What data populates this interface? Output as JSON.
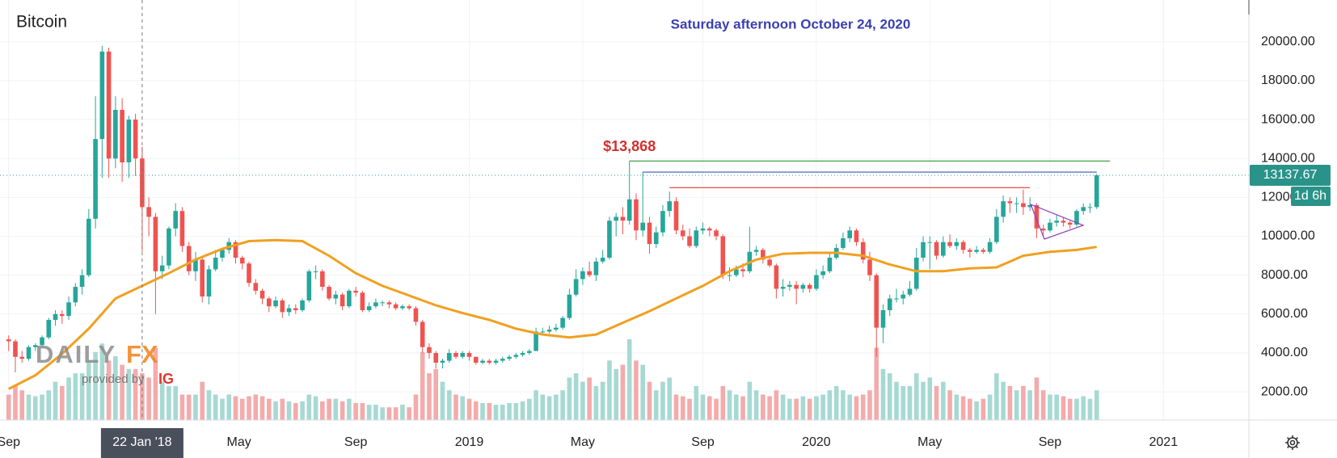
{
  "chart_data": {
    "type": "candlestick",
    "symbol": "Bitcoin",
    "title": "Saturday afternoon October 24, 2020",
    "up_color": "#26a69a",
    "down_color": "#ef5350",
    "up_volume_color": "#a7d9d3",
    "down_volume_color": "#f3abab",
    "grid": true,
    "xlim": [
      -1.3,
      185.8
    ],
    "xticks": [
      {
        "value": 0,
        "label": "Sep"
      },
      {
        "value": 34.5,
        "label": "May"
      },
      {
        "value": 52,
        "label": "Sep"
      },
      {
        "value": 69,
        "label": "2019"
      },
      {
        "value": 86,
        "label": "May"
      },
      {
        "value": 104,
        "label": "Sep"
      },
      {
        "value": 121,
        "label": "2020"
      },
      {
        "value": 138,
        "label": "May"
      },
      {
        "value": 156,
        "label": "Sep"
      },
      {
        "value": 173,
        "label": "2021"
      }
    ],
    "ylim": [
      550,
      22150
    ],
    "yticks": [
      {
        "value": 2000,
        "label": "2000.00"
      },
      {
        "value": 4000,
        "label": "4000.00"
      },
      {
        "value": 6000,
        "label": "6000.00"
      },
      {
        "value": 8000,
        "label": "8000.00"
      },
      {
        "value": 10000,
        "label": "10000.00"
      },
      {
        "value": 12000,
        "label": "12000.00"
      },
      {
        "value": 14000,
        "label": "14000.00"
      },
      {
        "value": 16000,
        "label": "16000.00"
      },
      {
        "value": 18000,
        "label": "18000.00"
      },
      {
        "value": 20000,
        "label": "20000.00"
      }
    ],
    "candles": [
      [
        4700,
        4900,
        4100,
        4600
      ],
      [
        4600,
        4700,
        3000,
        3800
      ],
      [
        3800,
        4100,
        3500,
        3700
      ],
      [
        3700,
        4400,
        3600,
        4300
      ],
      [
        4300,
        4500,
        4100,
        4400
      ],
      [
        4400,
        4900,
        4300,
        4800
      ],
      [
        4800,
        5800,
        4700,
        5700
      ],
      [
        5700,
        6200,
        5400,
        6000
      ],
      [
        6000,
        6200,
        5500,
        5900
      ],
      [
        5900,
        6900,
        5700,
        6600
      ],
      [
        6600,
        7600,
        6400,
        7400
      ],
      [
        7400,
        8300,
        7000,
        8000
      ],
      [
        8000,
        11400,
        7900,
        10900
      ],
      [
        10900,
        17200,
        10400,
        15000
      ],
      [
        15000,
        19800,
        13000,
        19500
      ],
      [
        19500,
        19700,
        13000,
        14000
      ],
      [
        14000,
        17200,
        13500,
        16500
      ],
      [
        16500,
        17100,
        12800,
        13800
      ],
      [
        13800,
        16200,
        13000,
        16000
      ],
      [
        16000,
        16300,
        13100,
        14000
      ],
      [
        14000,
        14600,
        9200,
        11500
      ],
      [
        11500,
        12000,
        10000,
        11000
      ],
      [
        11000,
        11200,
        6000,
        8200
      ],
      [
        8200,
        9000,
        7800,
        8500
      ],
      [
        8500,
        10500,
        8300,
        10400
      ],
      [
        10400,
        11700,
        10000,
        11300
      ],
      [
        11300,
        11500,
        9200,
        9500
      ],
      [
        9500,
        9700,
        8000,
        8200
      ],
      [
        8200,
        9200,
        7700,
        8800
      ],
      [
        8800,
        9000,
        6600,
        6900
      ],
      [
        6900,
        8500,
        6500,
        8300
      ],
      [
        8300,
        9300,
        8200,
        8900
      ],
      [
        8900,
        9400,
        8700,
        9300
      ],
      [
        9300,
        9900,
        9100,
        9700
      ],
      [
        9700,
        9800,
        8600,
        8900
      ],
      [
        8900,
        9000,
        8300,
        8600
      ],
      [
        8600,
        8700,
        7400,
        7600
      ],
      [
        7600,
        7800,
        7000,
        7200
      ],
      [
        7200,
        7300,
        6500,
        6800
      ],
      [
        6800,
        6900,
        6100,
        6400
      ],
      [
        6400,
        6900,
        6300,
        6700
      ],
      [
        6700,
        6800,
        5800,
        6100
      ],
      [
        6100,
        6500,
        5900,
        6300
      ],
      [
        6300,
        6500,
        6000,
        6200
      ],
      [
        6200,
        6800,
        6100,
        6700
      ],
      [
        6700,
        8300,
        6600,
        8200
      ],
      [
        8200,
        8500,
        7800,
        8200
      ],
      [
        8200,
        8300,
        7200,
        7400
      ],
      [
        7400,
        7500,
        6700,
        6800
      ],
      [
        6800,
        7200,
        6500,
        7000
      ],
      [
        7000,
        7100,
        6200,
        6400
      ],
      [
        6400,
        7300,
        6300,
        7200
      ],
      [
        7200,
        7400,
        6900,
        7100
      ],
      [
        7100,
        7200,
        6100,
        6200
      ],
      [
        6200,
        6600,
        6100,
        6400
      ],
      [
        6400,
        6800,
        6300,
        6600
      ],
      [
        6600,
        6700,
        6400,
        6600
      ],
      [
        6600,
        6700,
        6300,
        6500
      ],
      [
        6500,
        6600,
        6200,
        6300
      ],
      [
        6300,
        6500,
        6200,
        6400
      ],
      [
        6400,
        6500,
        6200,
        6300
      ],
      [
        6300,
        6400,
        5400,
        5600
      ],
      [
        5600,
        5700,
        4000,
        4300
      ],
      [
        4300,
        4500,
        3700,
        4000
      ],
      [
        4000,
        4100,
        3200,
        3500
      ],
      [
        3500,
        3700,
        3200,
        3600
      ],
      [
        3600,
        4200,
        3500,
        4000
      ],
      [
        4000,
        4100,
        3700,
        3800
      ],
      [
        3800,
        4100,
        3700,
        4000
      ],
      [
        4000,
        4100,
        3600,
        3800
      ],
      [
        3800,
        3800,
        3400,
        3500
      ],
      [
        3500,
        3700,
        3400,
        3600
      ],
      [
        3600,
        3700,
        3400,
        3500
      ],
      [
        3500,
        3700,
        3400,
        3600
      ],
      [
        3600,
        3800,
        3500,
        3700
      ],
      [
        3700,
        3900,
        3600,
        3800
      ],
      [
        3800,
        4000,
        3700,
        3900
      ],
      [
        3900,
        4100,
        3800,
        4000
      ],
      [
        4000,
        4200,
        3900,
        4100
      ],
      [
        4100,
        5300,
        4100,
        5100
      ],
      [
        5100,
        5300,
        4900,
        5100
      ],
      [
        5100,
        5400,
        5000,
        5200
      ],
      [
        5200,
        5500,
        5100,
        5300
      ],
      [
        5300,
        5900,
        5200,
        5800
      ],
      [
        5800,
        7300,
        5700,
        7000
      ],
      [
        7000,
        8300,
        6900,
        7800
      ],
      [
        7800,
        8400,
        7500,
        8200
      ],
      [
        8200,
        8700,
        7900,
        8000
      ],
      [
        8000,
        8900,
        7700,
        8700
      ],
      [
        8700,
        9300,
        8600,
        8900
      ],
      [
        8900,
        11000,
        8800,
        10800
      ],
      [
        10800,
        11200,
        10000,
        11000
      ],
      [
        11000,
        11500,
        10100,
        10800
      ],
      [
        10800,
        13868,
        10600,
        11900
      ],
      [
        11900,
        12200,
        9800,
        10300
      ],
      [
        10300,
        13300,
        10000,
        10700
      ],
      [
        10700,
        11000,
        9100,
        9600
      ],
      [
        9600,
        10500,
        9400,
        10200
      ],
      [
        10200,
        11600,
        10000,
        11300
      ],
      [
        11300,
        12300,
        11000,
        11800
      ],
      [
        11800,
        12000,
        10100,
        10300
      ],
      [
        10300,
        10600,
        9800,
        10000
      ],
      [
        10000,
        10400,
        9400,
        9500
      ],
      [
        9500,
        10500,
        9400,
        10300
      ],
      [
        10300,
        10700,
        10100,
        10400
      ],
      [
        10400,
        10500,
        10000,
        10300
      ],
      [
        10300,
        10400,
        9800,
        10000
      ],
      [
        10000,
        10100,
        7800,
        8000
      ],
      [
        8000,
        8400,
        7700,
        8000
      ],
      [
        8000,
        8500,
        7900,
        8300
      ],
      [
        8300,
        8600,
        7900,
        8200
      ],
      [
        8200,
        10500,
        8100,
        9200
      ],
      [
        9200,
        9500,
        9000,
        9300
      ],
      [
        9300,
        9400,
        8600,
        8800
      ],
      [
        8800,
        9000,
        8400,
        8500
      ],
      [
        8500,
        8600,
        6800,
        7300
      ],
      [
        7300,
        7800,
        6900,
        7400
      ],
      [
        7400,
        7700,
        7200,
        7500
      ],
      [
        7500,
        7700,
        6500,
        7300
      ],
      [
        7300,
        7600,
        7100,
        7500
      ],
      [
        7500,
        7600,
        7100,
        7300
      ],
      [
        7300,
        8300,
        7200,
        8000
      ],
      [
        8000,
        8500,
        7800,
        8200
      ],
      [
        8200,
        9100,
        8100,
        8900
      ],
      [
        8900,
        9600,
        8800,
        9400
      ],
      [
        9400,
        10200,
        9300,
        9900
      ],
      [
        9900,
        10500,
        9700,
        10300
      ],
      [
        10300,
        10400,
        9500,
        9700
      ],
      [
        9700,
        9900,
        8600,
        8800
      ],
      [
        8800,
        9200,
        7700,
        8000
      ],
      [
        8000,
        8100,
        3800,
        5300
      ],
      [
        5300,
        6500,
        4500,
        6200
      ],
      [
        6200,
        7000,
        5900,
        6800
      ],
      [
        6800,
        7300,
        6600,
        6800
      ],
      [
        6800,
        7200,
        6500,
        7000
      ],
      [
        7000,
        7700,
        6900,
        7300
      ],
      [
        7300,
        9400,
        7200,
        8900
      ],
      [
        8900,
        10000,
        8700,
        9700
      ],
      [
        9700,
        10000,
        8300,
        9700
      ],
      [
        9700,
        9800,
        8800,
        9000
      ],
      [
        9000,
        10000,
        8900,
        9700
      ],
      [
        9700,
        10100,
        9400,
        9500
      ],
      [
        9500,
        9900,
        9300,
        9700
      ],
      [
        9700,
        9800,
        9100,
        9300
      ],
      [
        9300,
        9400,
        8900,
        9200
      ],
      [
        9200,
        9500,
        9100,
        9300
      ],
      [
        9300,
        9400,
        9100,
        9200
      ],
      [
        9200,
        9900,
        9100,
        9700
      ],
      [
        9700,
        11400,
        9600,
        11000
      ],
      [
        11000,
        12100,
        10700,
        11800
      ],
      [
        11800,
        12000,
        11200,
        11700
      ],
      [
        11700,
        12000,
        11200,
        11700
      ],
      [
        11700,
        12400,
        11100,
        11500
      ],
      [
        11500,
        12000,
        11300,
        11600
      ],
      [
        11600,
        11700,
        9900,
        10400
      ],
      [
        10400,
        10600,
        10000,
        10300
      ],
      [
        10300,
        10900,
        10200,
        10700
      ],
      [
        10700,
        11100,
        10500,
        10800
      ],
      [
        10800,
        11000,
        10500,
        10700
      ],
      [
        10700,
        10800,
        10400,
        10600
      ],
      [
        10600,
        11400,
        10500,
        11300
      ],
      [
        11300,
        11700,
        11100,
        11500
      ],
      [
        11500,
        11700,
        11200,
        11500
      ],
      [
        11500,
        13200,
        11400,
        13137.67
      ]
    ],
    "volume": [
      30,
      40,
      35,
      30,
      28,
      30,
      35,
      45,
      40,
      50,
      55,
      55,
      70,
      80,
      90,
      70,
      75,
      65,
      60,
      60,
      55,
      50,
      85,
      45,
      40,
      40,
      30,
      30,
      30,
      45,
      35,
      30,
      25,
      30,
      28,
      25,
      28,
      30,
      28,
      25,
      22,
      25,
      22,
      20,
      22,
      30,
      28,
      22,
      25,
      25,
      22,
      25,
      20,
      20,
      18,
      18,
      15,
      15,
      15,
      18,
      15,
      30,
      80,
      55,
      60,
      45,
      35,
      30,
      28,
      25,
      22,
      20,
      20,
      18,
      18,
      20,
      20,
      22,
      25,
      35,
      30,
      28,
      30,
      35,
      50,
      55,
      45,
      50,
      40,
      45,
      70,
      60,
      65,
      95,
      70,
      65,
      45,
      35,
      45,
      50,
      30,
      28,
      25,
      40,
      30,
      28,
      25,
      40,
      35,
      30,
      28,
      45,
      35,
      30,
      28,
      35,
      30,
      25,
      25,
      28,
      25,
      28,
      30,
      35,
      40,
      35,
      30,
      28,
      30,
      35,
      85,
      60,
      55,
      45,
      40,
      40,
      55,
      45,
      50,
      40,
      45,
      35,
      30,
      28,
      25,
      22,
      25,
      30,
      55,
      45,
      40,
      35,
      40,
      35,
      50,
      35,
      30,
      30,
      28,
      25,
      25,
      28,
      25,
      35
    ],
    "ma": {
      "color": "#f0a020",
      "x": [
        0,
        4,
        8,
        12,
        16,
        20,
        24,
        28,
        32,
        36,
        40,
        44,
        48,
        52,
        56,
        60,
        64,
        68,
        72,
        76,
        80,
        84,
        88,
        92,
        96,
        100,
        104,
        108,
        112,
        116,
        120,
        124,
        128,
        132,
        136,
        140,
        144,
        148,
        152,
        156,
        160,
        163
      ],
      "values": [
        2150,
        2850,
        3950,
        5250,
        6800,
        7450,
        8100,
        8800,
        9350,
        9750,
        9800,
        9750,
        9000,
        8100,
        7450,
        6950,
        6450,
        6050,
        5700,
        5250,
        4950,
        4800,
        4950,
        5550,
        6150,
        6800,
        7450,
        8200,
        8800,
        9100,
        9150,
        9150,
        9000,
        8550,
        8200,
        8200,
        8350,
        8400,
        9000,
        9200,
        9300,
        9450
      ]
    },
    "levels": [
      {
        "value": 13868,
        "from": 93,
        "to": 165,
        "color": "#43a047"
      },
      {
        "value": 13300,
        "from": 95,
        "to": 163,
        "color": "#3f51b5"
      },
      {
        "value": 12500,
        "from": 99,
        "to": 153,
        "color": "#e53935"
      }
    ],
    "annotation": {
      "text": "$13,868",
      "value": 13868,
      "x": 93
    },
    "crosshair": {
      "x": 20,
      "label": "22 Jan '18"
    },
    "countdown": "1d 6h",
    "logo": {
      "brand1": "DAILY",
      "brand2": "FX",
      "provided": "provided by",
      "ig": "IG"
    }
  }
}
